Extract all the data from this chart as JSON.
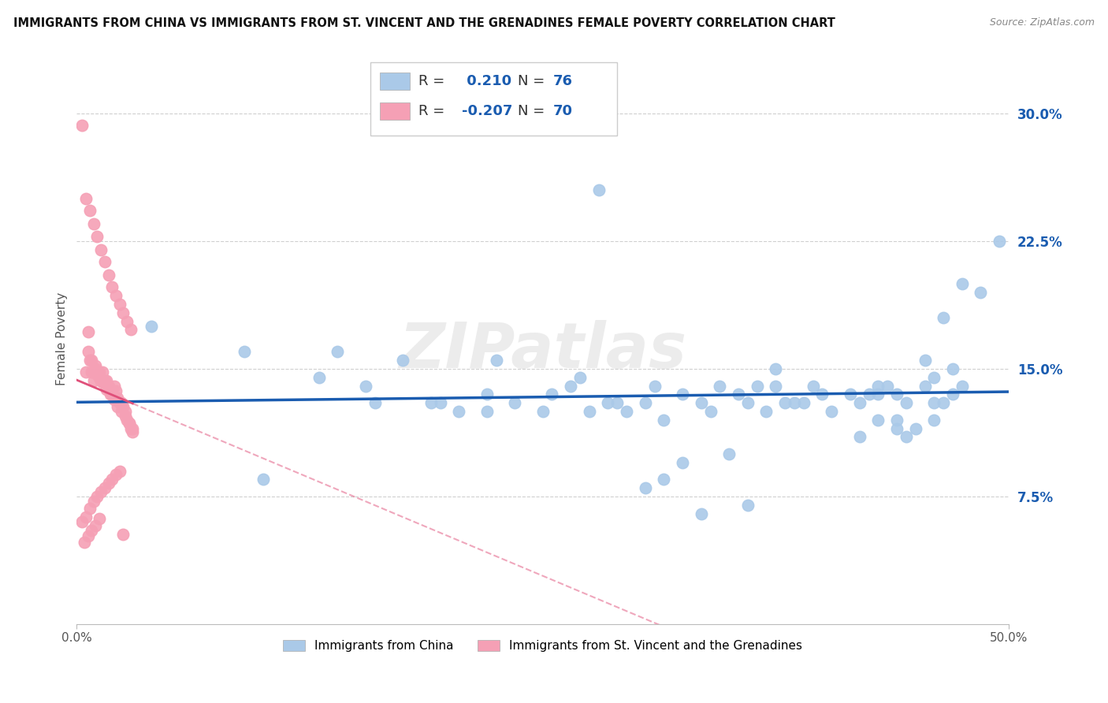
{
  "title": "IMMIGRANTS FROM CHINA VS IMMIGRANTS FROM ST. VINCENT AND THE GRENADINES FEMALE POVERTY CORRELATION CHART",
  "source": "Source: ZipAtlas.com",
  "ylabel": "Female Poverty",
  "y_ticks": [
    0.075,
    0.15,
    0.225,
    0.3
  ],
  "y_tick_labels": [
    "7.5%",
    "15.0%",
    "22.5%",
    "30.0%"
  ],
  "x_range": [
    0,
    0.5
  ],
  "y_range": [
    0.0,
    0.335
  ],
  "R_china": 0.21,
  "N_china": 76,
  "R_vincent": -0.207,
  "N_vincent": 70,
  "legend_label_china": "Immigrants from China",
  "legend_label_vincent": "Immigrants from St. Vincent and the Grenadines",
  "color_china": "#aac9e8",
  "color_vincent": "#f5a0b5",
  "line_color_china": "#1a5cb0",
  "line_color_vincent": "#e0507a",
  "watermark": "ZIPatlas",
  "china_x": [
    0.04,
    0.28,
    0.495,
    0.09,
    0.13,
    0.155,
    0.175,
    0.19,
    0.22,
    0.225,
    0.14,
    0.16,
    0.195,
    0.205,
    0.22,
    0.235,
    0.25,
    0.255,
    0.265,
    0.27,
    0.275,
    0.285,
    0.29,
    0.295,
    0.305,
    0.31,
    0.315,
    0.325,
    0.335,
    0.34,
    0.345,
    0.355,
    0.36,
    0.365,
    0.375,
    0.375,
    0.385,
    0.39,
    0.395,
    0.4,
    0.405,
    0.415,
    0.42,
    0.425,
    0.43,
    0.435,
    0.44,
    0.445,
    0.455,
    0.46,
    0.465,
    0.47,
    0.475,
    0.305,
    0.315,
    0.325,
    0.335,
    0.35,
    0.36,
    0.37,
    0.38,
    0.43,
    0.44,
    0.45,
    0.1,
    0.455,
    0.465,
    0.475,
    0.485,
    0.46,
    0.42,
    0.43,
    0.44,
    0.445,
    0.46,
    0.47
  ],
  "china_y": [
    0.175,
    0.255,
    0.225,
    0.16,
    0.145,
    0.14,
    0.155,
    0.13,
    0.135,
    0.155,
    0.16,
    0.13,
    0.13,
    0.125,
    0.125,
    0.13,
    0.125,
    0.135,
    0.14,
    0.145,
    0.125,
    0.13,
    0.13,
    0.125,
    0.13,
    0.14,
    0.12,
    0.135,
    0.13,
    0.125,
    0.14,
    0.135,
    0.13,
    0.14,
    0.15,
    0.14,
    0.13,
    0.13,
    0.14,
    0.135,
    0.125,
    0.135,
    0.13,
    0.135,
    0.14,
    0.14,
    0.135,
    0.13,
    0.14,
    0.145,
    0.13,
    0.135,
    0.14,
    0.08,
    0.085,
    0.095,
    0.065,
    0.1,
    0.07,
    0.125,
    0.13,
    0.135,
    0.12,
    0.115,
    0.085,
    0.155,
    0.18,
    0.2,
    0.195,
    0.12,
    0.11,
    0.12,
    0.115,
    0.11,
    0.13,
    0.15
  ],
  "vincent_x": [
    0.003,
    0.005,
    0.006,
    0.007,
    0.008,
    0.009,
    0.01,
    0.011,
    0.012,
    0.013,
    0.014,
    0.015,
    0.016,
    0.017,
    0.018,
    0.019,
    0.02,
    0.021,
    0.022,
    0.023,
    0.024,
    0.025,
    0.026,
    0.027,
    0.028,
    0.029,
    0.03,
    0.005,
    0.007,
    0.009,
    0.011,
    0.013,
    0.015,
    0.017,
    0.019,
    0.021,
    0.023,
    0.025,
    0.027,
    0.029,
    0.003,
    0.005,
    0.007,
    0.009,
    0.011,
    0.013,
    0.015,
    0.017,
    0.019,
    0.021,
    0.023,
    0.025,
    0.006,
    0.008,
    0.01,
    0.012,
    0.014,
    0.016,
    0.018,
    0.02,
    0.022,
    0.024,
    0.026,
    0.028,
    0.03,
    0.004,
    0.006,
    0.008,
    0.01,
    0.012
  ],
  "vincent_y": [
    0.293,
    0.148,
    0.172,
    0.155,
    0.148,
    0.143,
    0.152,
    0.147,
    0.148,
    0.143,
    0.148,
    0.143,
    0.143,
    0.14,
    0.138,
    0.135,
    0.14,
    0.137,
    0.133,
    0.13,
    0.13,
    0.128,
    0.125,
    0.12,
    0.118,
    0.115,
    0.113,
    0.25,
    0.243,
    0.235,
    0.228,
    0.22,
    0.213,
    0.205,
    0.198,
    0.193,
    0.188,
    0.183,
    0.178,
    0.173,
    0.06,
    0.063,
    0.068,
    0.072,
    0.075,
    0.078,
    0.08,
    0.083,
    0.085,
    0.088,
    0.09,
    0.053,
    0.16,
    0.155,
    0.15,
    0.145,
    0.142,
    0.138,
    0.135,
    0.132,
    0.128,
    0.125,
    0.122,
    0.118,
    0.115,
    0.048,
    0.052,
    0.055,
    0.058,
    0.062
  ]
}
